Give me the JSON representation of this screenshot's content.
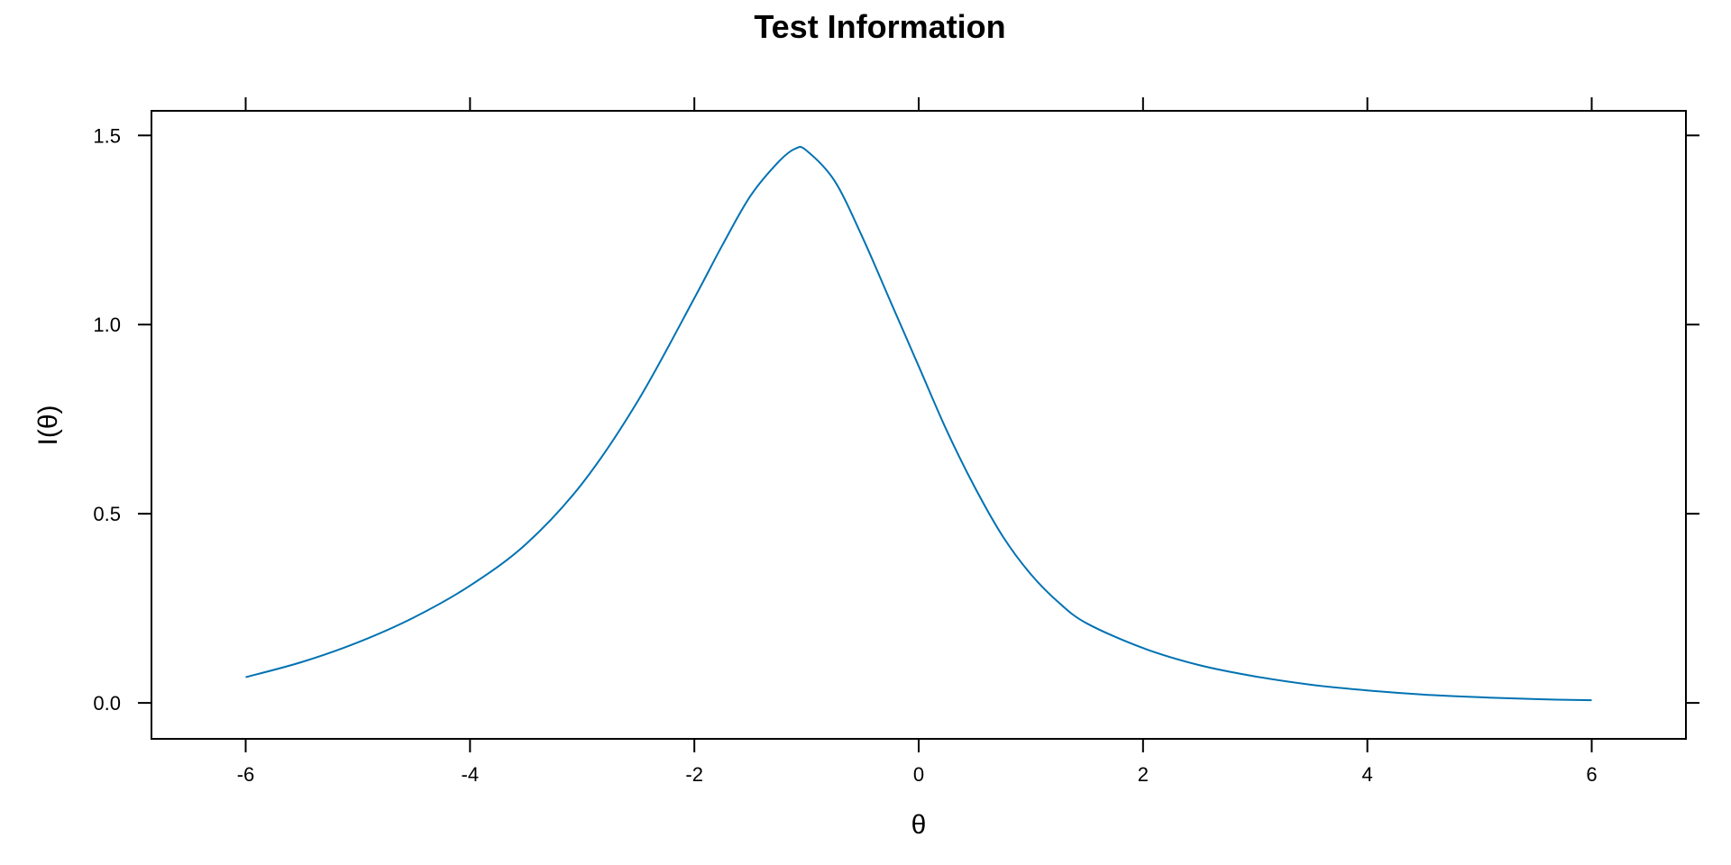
{
  "chart_data": {
    "type": "line",
    "title": "Test Information",
    "xlabel": "θ",
    "ylabel": "I(θ)",
    "xlim": [
      -6.84,
      6.84
    ],
    "ylim": [
      -0.095,
      1.565
    ],
    "x_ticks": [
      -6,
      -4,
      -2,
      0,
      2,
      4,
      6
    ],
    "x_tick_labels": [
      "-6",
      "-4",
      "-2",
      "0",
      "2",
      "4",
      "6"
    ],
    "y_ticks": [
      0.0,
      0.5,
      1.0,
      1.5
    ],
    "y_tick_labels": [
      "0.0",
      "0.5",
      "1.0",
      "1.5"
    ],
    "grid": false,
    "series": [
      {
        "color": "#0072B2",
        "x": [
          -6.0,
          -5.5,
          -5.0,
          -4.5,
          -4.0,
          -3.5,
          -3.0,
          -2.5,
          -2.0,
          -1.75,
          -1.5,
          -1.25,
          -1.1,
          -1.0,
          -0.75,
          -0.5,
          -0.25,
          0.0,
          0.25,
          0.5,
          0.75,
          1.0,
          1.25,
          1.5,
          2.0,
          2.5,
          3.0,
          3.5,
          4.0,
          4.5,
          5.0,
          5.5,
          6.0
        ],
        "y": [
          0.068,
          0.108,
          0.16,
          0.226,
          0.31,
          0.42,
          0.58,
          0.8,
          1.07,
          1.21,
          1.34,
          1.43,
          1.465,
          1.46,
          1.38,
          1.23,
          1.06,
          0.89,
          0.72,
          0.57,
          0.44,
          0.34,
          0.265,
          0.21,
          0.145,
          0.1,
          0.07,
          0.048,
          0.033,
          0.022,
          0.015,
          0.01,
          0.007
        ]
      }
    ]
  }
}
